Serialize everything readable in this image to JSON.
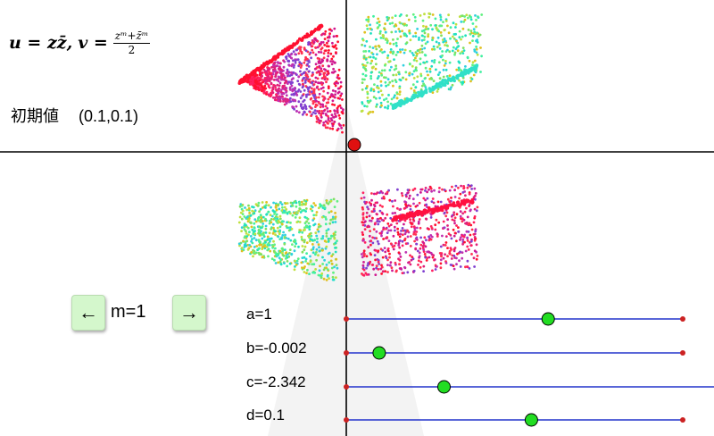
{
  "formula": {
    "u_lhs": "u = z",
    "u_conj": "z̄",
    "separator": ",",
    "v_lhs": "v =",
    "v_num": "zᵐ+z̄ᵐ",
    "v_den": "2"
  },
  "initial": {
    "label": "初期値",
    "value": "(0.1,0.1)"
  },
  "controls": {
    "prev_label": "←",
    "next_label": "→",
    "m_label": "m=1"
  },
  "sliders": [
    {
      "label": "a=1",
      "value": 1
    },
    {
      "label": "b=-0.002",
      "value": -0.002
    },
    {
      "label": "c=-2.342",
      "value": -2.342
    },
    {
      "label": "d=0.1",
      "value": 0.1
    }
  ],
  "colors": {
    "axis": "#000000",
    "slider_line": "#2233cc",
    "slider_end": "#cc2222",
    "knob": "#22dd22",
    "origin_point": "#e01010",
    "button_bg": "#d4f7cc"
  }
}
